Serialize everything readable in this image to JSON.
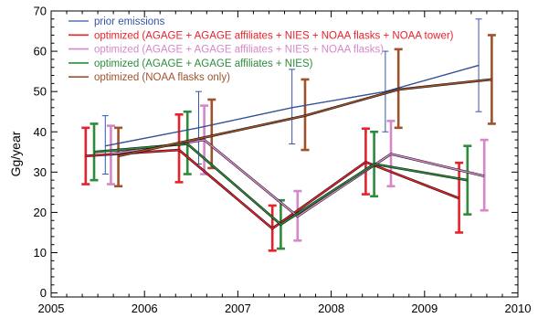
{
  "chart_data": {
    "type": "line",
    "title": "",
    "xlabel": "",
    "ylabel": "Gg/year",
    "xlim": [
      2005,
      2010
    ],
    "ylim": [
      -1,
      70
    ],
    "xticks": [
      2005,
      2006,
      2007,
      2008,
      2009,
      2010
    ],
    "yticks": [
      0,
      10,
      20,
      30,
      40,
      50,
      60,
      70
    ],
    "grid": false,
    "legend_position": "top-left",
    "series": [
      {
        "name": "prior emissions",
        "color": "#3355aa",
        "points": [
          {
            "x": 2005.58,
            "y": 36.5,
            "lo": 29.5,
            "hi": 44.0
          },
          {
            "x": 2006.58,
            "y": 41.0,
            "lo": 32.0,
            "hi": 50.0
          },
          {
            "x": 2007.58,
            "y": 46.0,
            "lo": 37.0,
            "hi": 55.5
          },
          {
            "x": 2008.58,
            "y": 50.0,
            "lo": 40.0,
            "hi": 60.0
          },
          {
            "x": 2009.58,
            "y": 56.5,
            "lo": 45.0,
            "hi": 68.0
          }
        ]
      },
      {
        "name": "optimized (AGAGE + AGAGE affiliates + NIES + NOAA flasks + NOAA tower)",
        "color": "#e8222c",
        "points": [
          {
            "x": 2005.37,
            "y": 34.0,
            "lo": 27.0,
            "hi": 41.0
          },
          {
            "x": 2006.37,
            "y": 35.5,
            "lo": 27.5,
            "hi": 44.3
          },
          {
            "x": 2007.37,
            "y": 16.0,
            "lo": 10.5,
            "hi": 21.7
          },
          {
            "x": 2008.37,
            "y": 32.5,
            "lo": 24.5,
            "hi": 40.8
          },
          {
            "x": 2009.37,
            "y": 23.5,
            "lo": 15.0,
            "hi": 32.3
          }
        ]
      },
      {
        "name": "optimized (AGAGE + AGAGE affiliates + NIES + NOAA flasks)",
        "color": "#d687c9",
        "points": [
          {
            "x": 2005.64,
            "y": 34.5,
            "lo": 27.0,
            "hi": 41.5
          },
          {
            "x": 2006.64,
            "y": 38.0,
            "lo": 29.5,
            "hi": 46.5
          },
          {
            "x": 2007.64,
            "y": 19.0,
            "lo": 13.0,
            "hi": 25.3
          },
          {
            "x": 2008.64,
            "y": 34.5,
            "lo": 26.5,
            "hi": 42.7
          },
          {
            "x": 2009.64,
            "y": 29.0,
            "lo": 20.5,
            "hi": 38.0
          }
        ]
      },
      {
        "name": "optimized (AGAGE + AGAGE affiliates + NIES)",
        "color": "#2e8b3c",
        "points": [
          {
            "x": 2005.46,
            "y": 35.0,
            "lo": 28.0,
            "hi": 42.0
          },
          {
            "x": 2006.46,
            "y": 37.0,
            "lo": 29.5,
            "hi": 45.0
          },
          {
            "x": 2007.46,
            "y": 17.0,
            "lo": 11.0,
            "hi": 23.0
          },
          {
            "x": 2008.46,
            "y": 32.0,
            "lo": 24.0,
            "hi": 40.0
          },
          {
            "x": 2009.46,
            "y": 28.0,
            "lo": 19.5,
            "hi": 36.5
          }
        ]
      },
      {
        "name": "optimized (NOAA flasks only)",
        "color": "#a0522d",
        "points": [
          {
            "x": 2005.72,
            "y": 34.0,
            "lo": 26.5,
            "hi": 41.0
          },
          {
            "x": 2006.72,
            "y": 39.0,
            "lo": 31.0,
            "hi": 48.0
          },
          {
            "x": 2007.72,
            "y": 44.0,
            "lo": 35.5,
            "hi": 53.0
          },
          {
            "x": 2008.72,
            "y": 50.5,
            "lo": 41.0,
            "hi": 60.5
          },
          {
            "x": 2009.72,
            "y": 53.0,
            "lo": 42.0,
            "hi": 64.0
          }
        ]
      }
    ]
  }
}
